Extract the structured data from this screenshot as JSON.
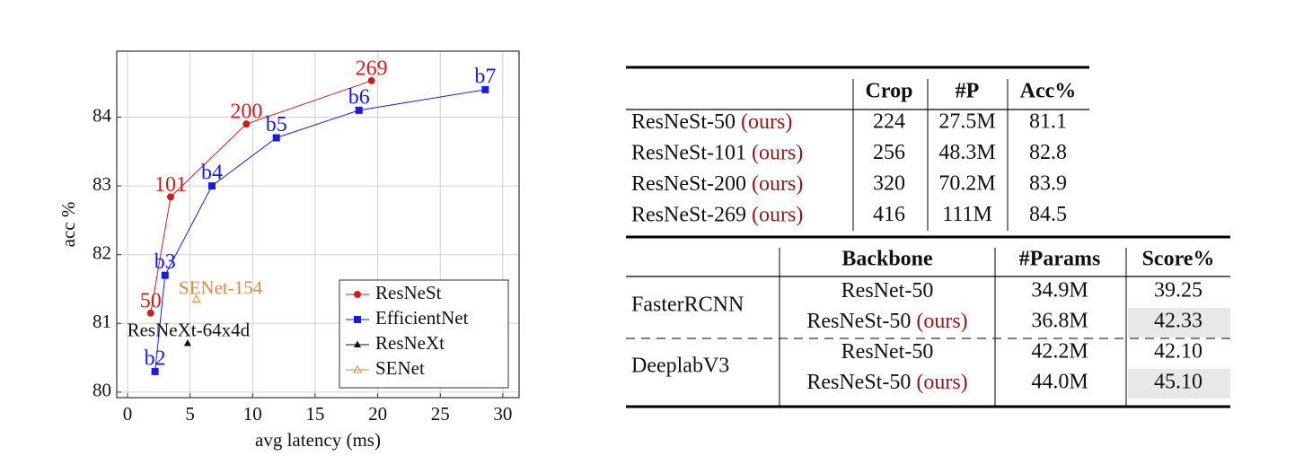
{
  "chart_data": {
    "type": "line",
    "xlabel": "avg latency (ms)",
    "ylabel": "acc %",
    "xlim": [
      -0.86,
      31.3
    ],
    "ylim": [
      79.92,
      84.96
    ],
    "xticks": [
      0,
      5,
      10,
      15,
      20,
      25,
      30
    ],
    "yticks": [
      80,
      81,
      82,
      83,
      84
    ],
    "grid": true,
    "legend": "lower right",
    "series": [
      {
        "name": "ResNeSt",
        "color": "#d01c1c",
        "marker": "circle",
        "x": [
          1.85,
          3.45,
          9.5,
          19.5
        ],
        "values": [
          81.15,
          82.84,
          83.9,
          84.53
        ],
        "point_labels": [
          "50",
          "101",
          "200",
          "269"
        ]
      },
      {
        "name": "EfficientNet",
        "color": "#1a1ae6",
        "marker": "square",
        "x": [
          2.2,
          3.0,
          6.75,
          11.9,
          18.5,
          28.6
        ],
        "values": [
          80.3,
          81.7,
          83.0,
          83.7,
          84.1,
          84.4
        ],
        "point_labels": [
          "b2",
          "b3",
          "b4",
          "b5",
          "b6",
          "b7"
        ]
      },
      {
        "name": "ResNeXt",
        "color": "#111111",
        "marker": "triangle",
        "x": [
          4.8
        ],
        "values": [
          80.71
        ],
        "point_labels": [
          "ResNeXt-64x4d"
        ]
      },
      {
        "name": "SENet",
        "color": "#e08a3c",
        "marker": "open-triangle",
        "x": [
          5.5
        ],
        "values": [
          81.35
        ],
        "point_labels": [
          "SENet-154"
        ]
      }
    ]
  },
  "table1": {
    "header": [
      "Crop",
      "#P",
      "Acc%"
    ],
    "rows": [
      {
        "name": "ResNeSt-50",
        "tag": "(ours)",
        "cells": [
          "224",
          "27.5M",
          "81.1"
        ]
      },
      {
        "name": "ResNeSt-101",
        "tag": "(ours)",
        "cells": [
          "256",
          "48.3M",
          "82.8"
        ]
      },
      {
        "name": "ResNeSt-200",
        "tag": "(ours)",
        "cells": [
          "320",
          "70.2M",
          "83.9"
        ]
      },
      {
        "name": "ResNeSt-269",
        "tag": "(ours)",
        "cells": [
          "416",
          "111M",
          "84.5"
        ]
      }
    ]
  },
  "table2": {
    "header": [
      "Backbone",
      "#Params",
      "Score%"
    ],
    "groups": [
      {
        "name": "FasterRCNN",
        "rows": [
          {
            "backbone": "ResNet-50",
            "params": "34.9M",
            "score": "39.25",
            "highlight": false
          },
          {
            "backbone": "ResNeSt-50",
            "tag": "(ours)",
            "params": "36.8M",
            "score": "42.33",
            "highlight": true
          }
        ]
      },
      {
        "name": "DeeplabV3",
        "rows": [
          {
            "backbone": "ResNet-50",
            "params": "42.2M",
            "score": "42.10",
            "highlight": false
          },
          {
            "backbone": "ResNeSt-50",
            "tag": "(ours)",
            "params": "44.0M",
            "score": "45.10",
            "highlight": true
          }
        ]
      }
    ]
  }
}
